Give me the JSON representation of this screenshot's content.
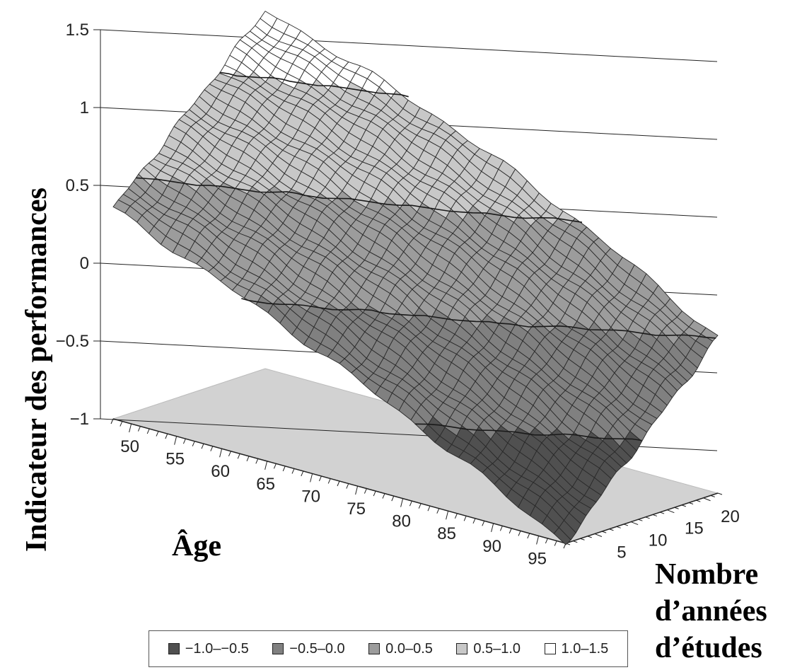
{
  "chart_data": {
    "type": "surface",
    "title": "",
    "zlabel": "Indicateur des performances",
    "xlabel": "Âge",
    "ylabel_lines": [
      "Nombre",
      "d’années",
      "d’études"
    ],
    "z_ticks": [
      "1.5",
      "1",
      "0.5",
      "0",
      "−0.5",
      "−1"
    ],
    "z_tick_values": [
      1.5,
      1,
      0.5,
      0,
      -0.5,
      -1
    ],
    "zlim": [
      -1,
      1.5
    ],
    "x_ticks": [
      "50",
      "55",
      "60",
      "65",
      "70",
      "75",
      "80",
      "85",
      "90",
      "95"
    ],
    "x_tick_values": [
      50,
      55,
      60,
      65,
      70,
      75,
      80,
      85,
      90,
      95
    ],
    "xlim": [
      48,
      98
    ],
    "y_ticks": [
      "5",
      "10",
      "15",
      "20"
    ],
    "y_tick_values": [
      5,
      10,
      15,
      20
    ],
    "ylim": [
      1,
      22
    ],
    "surface_corners": {
      "age_48_edu_1": 0.35,
      "age_98_edu_1": -1.0,
      "age_48_edu_22": 1.3,
      "age_98_edu_22": 0.0
    },
    "legend": [
      {
        "label": "−1.0–−0.5",
        "color": "#505050"
      },
      {
        "label": "−0.5–0.0",
        "color": "#808080"
      },
      {
        "label": "0.0–0.5",
        "color": "#9c9c9c"
      },
      {
        "label": "0.5–1.0",
        "color": "#c8c8c8"
      },
      {
        "label": "1.0–1.5",
        "color": "#ffffff"
      }
    ],
    "legend_position": "bottom"
  }
}
